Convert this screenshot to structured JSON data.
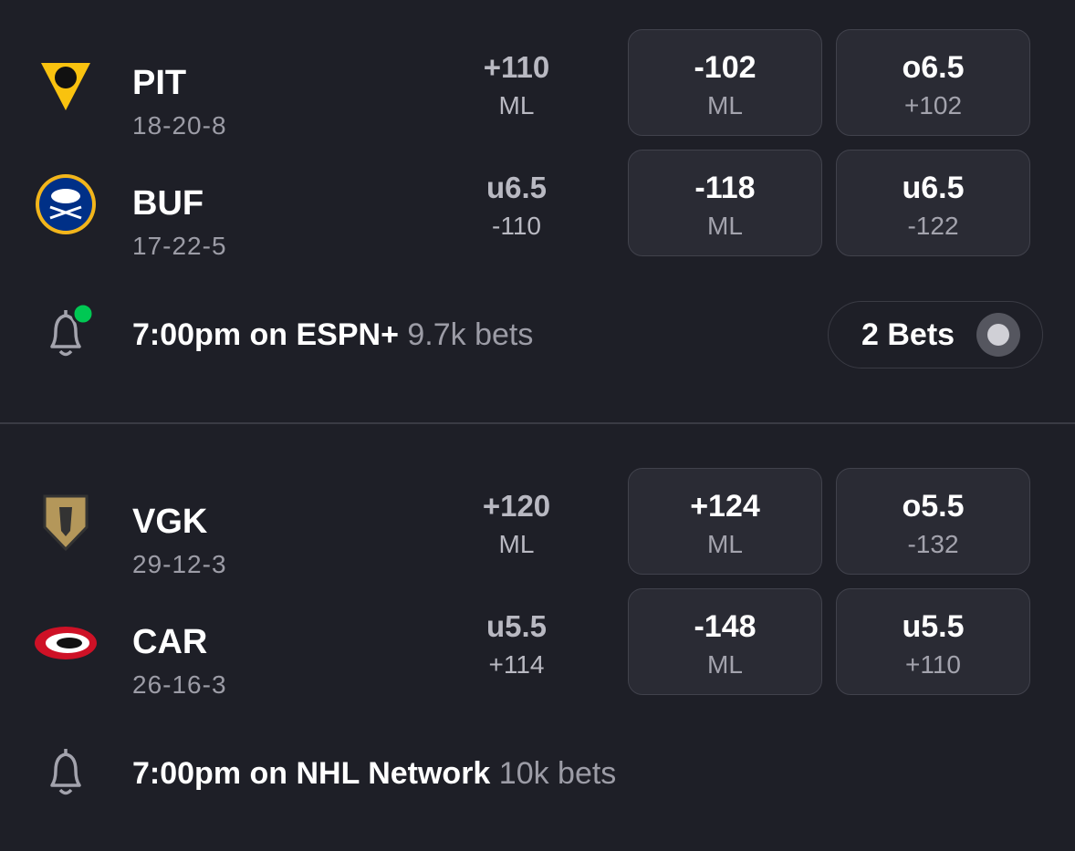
{
  "games": [
    {
      "teams": [
        {
          "abbr": "PIT",
          "record": "18-20-8",
          "open": {
            "top": "+110",
            "bottom": "ML"
          },
          "buttons": [
            {
              "top": "-102",
              "bottom": "ML"
            },
            {
              "top": "o6.5",
              "bottom": "+102"
            }
          ]
        },
        {
          "abbr": "BUF",
          "record": "17-22-5",
          "open": {
            "top": "u6.5",
            "bottom": "-110"
          },
          "buttons": [
            {
              "top": "-118",
              "bottom": "ML"
            },
            {
              "top": "u6.5",
              "bottom": "-122"
            }
          ]
        }
      ],
      "info": {
        "time": "7:00pm on ESPN+",
        "bets": "9.7k bets"
      },
      "badge": "2 Bets"
    },
    {
      "teams": [
        {
          "abbr": "VGK",
          "record": "29-12-3",
          "open": {
            "top": "+120",
            "bottom": "ML"
          },
          "buttons": [
            {
              "top": "+124",
              "bottom": "ML"
            },
            {
              "top": "o5.5",
              "bottom": "-132"
            }
          ]
        },
        {
          "abbr": "CAR",
          "record": "26-16-3",
          "open": {
            "top": "u5.5",
            "bottom": "+114"
          },
          "buttons": [
            {
              "top": "-148",
              "bottom": "ML"
            },
            {
              "top": "u5.5",
              "bottom": "+110"
            }
          ]
        }
      ],
      "info": {
        "time": "7:00pm on NHL Network",
        "bets": "10k bets"
      }
    }
  ]
}
